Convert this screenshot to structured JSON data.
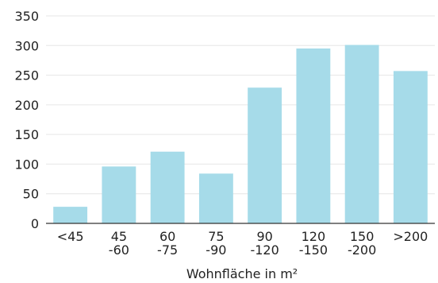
{
  "chart_data": {
    "type": "bar",
    "categories": [
      [
        "<45"
      ],
      [
        "45",
        "-60"
      ],
      [
        "60",
        "-75"
      ],
      [
        "75",
        "-90"
      ],
      [
        "90",
        "-120"
      ],
      [
        "120",
        "-150"
      ],
      [
        "150",
        "-200"
      ],
      [
        ">200"
      ]
    ],
    "values": [
      28,
      96,
      121,
      84,
      229,
      295,
      301,
      257
    ],
    "xlabel": "Wohnfläche in m²",
    "ylabel": "",
    "ylim": [
      0,
      350
    ],
    "yticks": [
      "0",
      "50",
      "100",
      "150",
      "200",
      "250",
      "300",
      "350"
    ],
    "grid": true,
    "bar_color": "#a6dbe9",
    "grid_color": "#e6e6e6",
    "axis_color": "#333333"
  }
}
